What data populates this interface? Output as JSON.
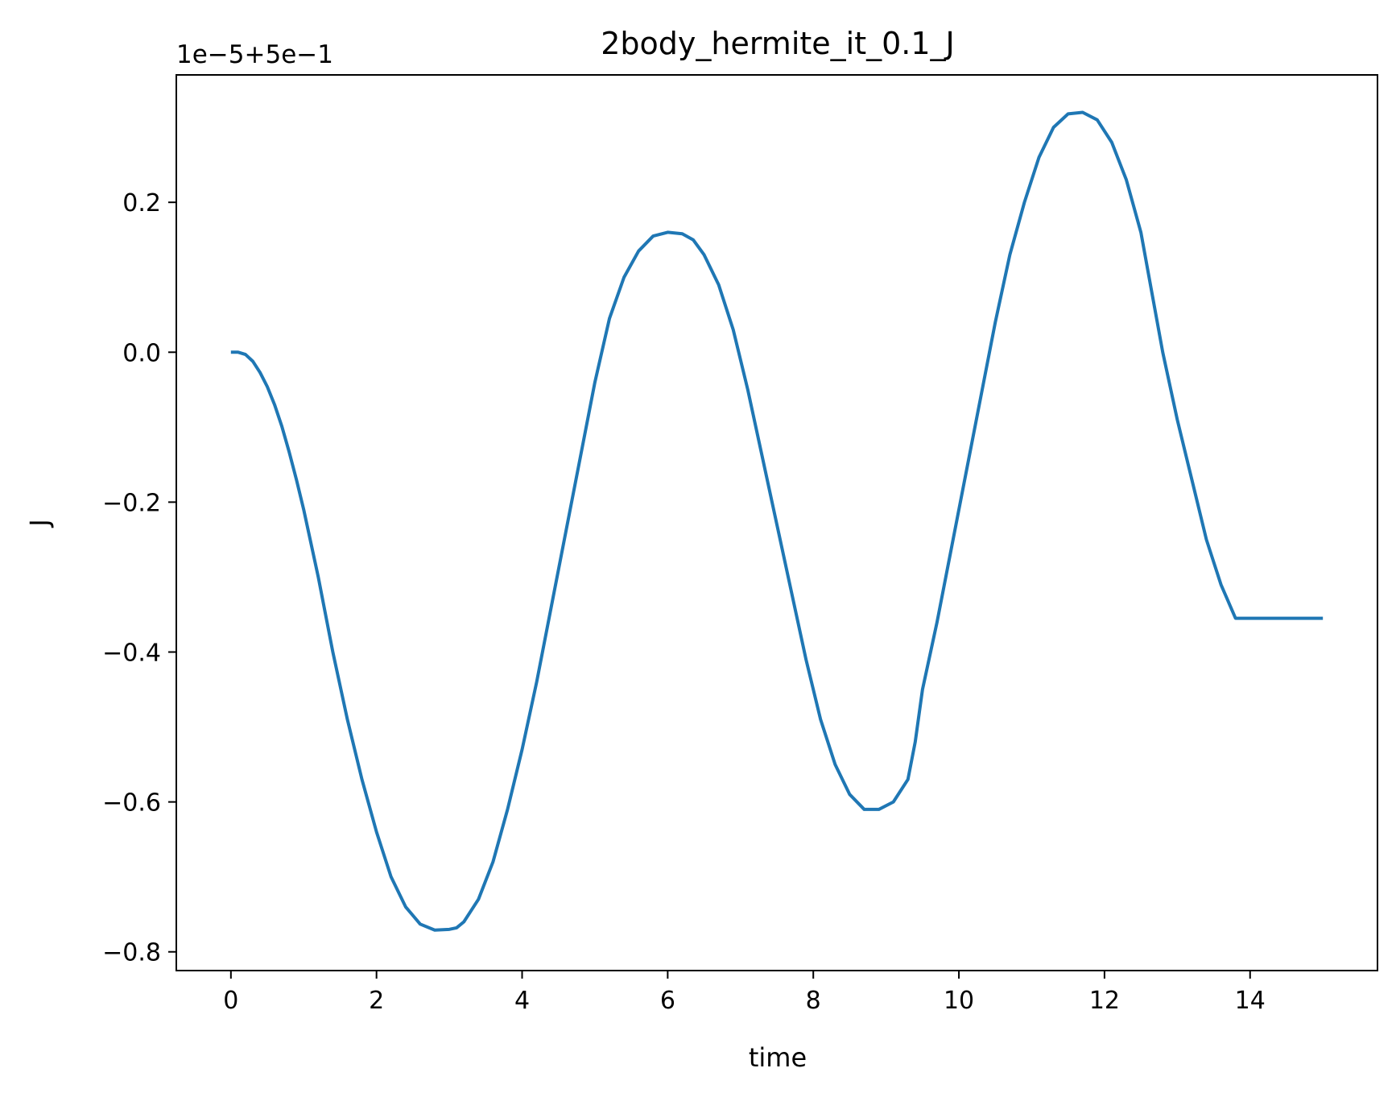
{
  "chart_data": {
    "type": "line",
    "title": "2body_hermite_it_0.1_J",
    "xlabel": "time",
    "ylabel": "J",
    "y_offset_text": "1e−5+5e−1",
    "xlim": [
      -0.75,
      15.75
    ],
    "ylim": [
      -0.825,
      0.37
    ],
    "x_ticks": [
      {
        "value": 0,
        "label": "0"
      },
      {
        "value": 2,
        "label": "2"
      },
      {
        "value": 4,
        "label": "4"
      },
      {
        "value": 6,
        "label": "6"
      },
      {
        "value": 8,
        "label": "8"
      },
      {
        "value": 10,
        "label": "10"
      },
      {
        "value": 12,
        "label": "12"
      },
      {
        "value": 14,
        "label": "14"
      }
    ],
    "y_ticks": [
      {
        "value": 0.2,
        "label": "0.2"
      },
      {
        "value": 0.0,
        "label": "0.0"
      },
      {
        "value": -0.2,
        "label": "−0.2"
      },
      {
        "value": -0.4,
        "label": "−0.4"
      },
      {
        "value": -0.6,
        "label": "−0.6"
      },
      {
        "value": -0.8,
        "label": "−0.8"
      }
    ],
    "grid": false,
    "series": [
      {
        "color": "#1f77b4",
        "x": [
          0,
          0.1,
          0.2,
          0.3,
          0.4,
          0.5,
          0.6,
          0.7,
          0.8,
          0.9,
          1.0,
          1.2,
          1.4,
          1.6,
          1.8,
          2.0,
          2.2,
          2.4,
          2.6,
          2.8,
          3.0,
          3.1,
          3.2,
          3.4,
          3.6,
          3.8,
          4.0,
          4.2,
          4.4,
          4.6,
          4.8,
          5.0,
          5.2,
          5.4,
          5.6,
          5.8,
          6.0,
          6.2,
          6.35,
          6.5,
          6.7,
          6.9,
          7.1,
          7.3,
          7.5,
          7.7,
          7.9,
          8.1,
          8.3,
          8.5,
          8.7,
          8.9,
          9.1,
          9.3,
          9.4,
          9.5,
          9.7,
          9.9,
          10.1,
          10.3,
          10.5,
          10.7,
          10.9,
          11.1,
          11.3,
          11.5,
          11.7,
          11.9,
          12.1,
          12.3,
          12.5,
          12.65,
          12.8,
          13.0,
          13.2,
          13.4,
          13.6,
          13.8,
          14.0,
          14.2,
          14.4,
          14.6,
          14.8,
          15.0
        ],
        "y": [
          0.0,
          0.0,
          -0.003,
          -0.012,
          -0.027,
          -0.046,
          -0.07,
          -0.099,
          -0.133,
          -0.17,
          -0.21,
          -0.3,
          -0.4,
          -0.49,
          -0.57,
          -0.64,
          -0.7,
          -0.74,
          -0.763,
          -0.771,
          -0.77,
          -0.768,
          -0.76,
          -0.73,
          -0.68,
          -0.61,
          -0.53,
          -0.44,
          -0.34,
          -0.24,
          -0.14,
          -0.04,
          0.045,
          0.1,
          0.135,
          0.155,
          0.16,
          0.158,
          0.15,
          0.13,
          0.09,
          0.03,
          -0.05,
          -0.14,
          -0.23,
          -0.32,
          -0.41,
          -0.49,
          -0.55,
          -0.59,
          -0.61,
          -0.61,
          -0.6,
          -0.57,
          -0.52,
          -0.45,
          -0.36,
          -0.26,
          -0.16,
          -0.06,
          0.04,
          0.13,
          0.2,
          0.26,
          0.3,
          0.318,
          0.32,
          0.31,
          0.28,
          0.23,
          0.16,
          0.08,
          0.0,
          -0.09,
          -0.17,
          -0.25,
          -0.31,
          -0.355,
          -0.355,
          -0.355,
          -0.355,
          -0.355,
          -0.355,
          -0.355
        ]
      }
    ]
  }
}
